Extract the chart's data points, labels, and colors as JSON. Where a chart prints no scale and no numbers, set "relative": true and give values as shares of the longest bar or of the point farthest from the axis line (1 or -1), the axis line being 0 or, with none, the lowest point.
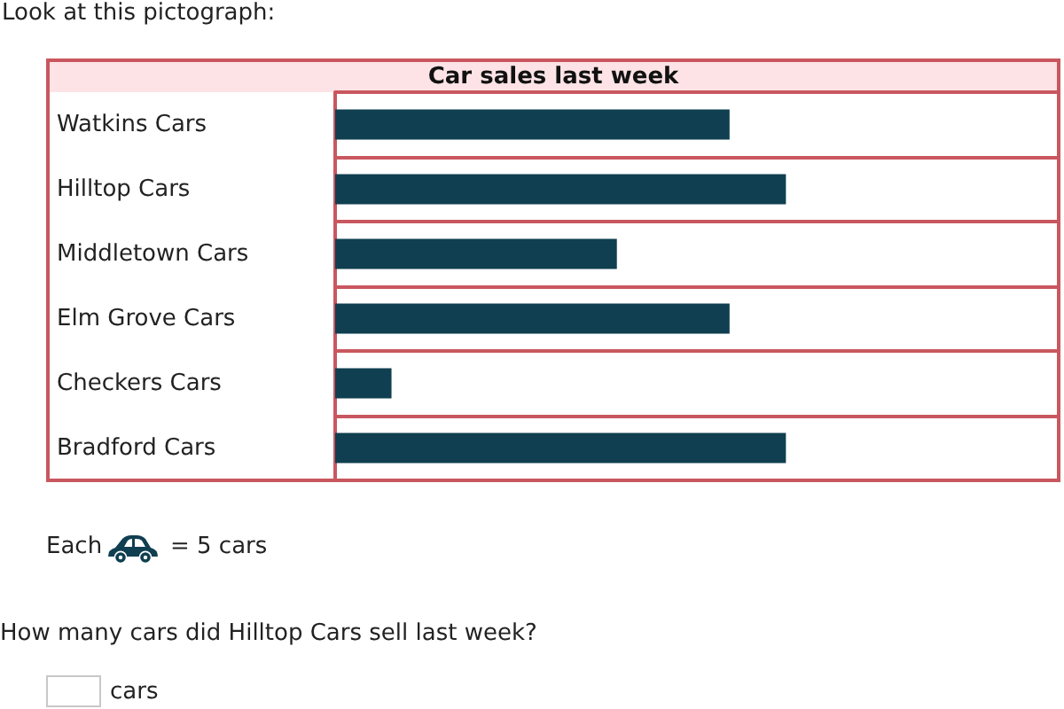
{
  "chart_data": {
    "type": "bar",
    "orientation": "horizontal",
    "relative": true,
    "title": "Car sales last week",
    "categories": [
      "Watkins Cars",
      "Hilltop Cars",
      "Middletown Cars",
      "Elm Grove Cars",
      "Checkers Cars",
      "Bradford Cars"
    ],
    "values": [
      0.875,
      1,
      0.625,
      0.875,
      0.125,
      1
    ],
    "color": "#0f3f50",
    "grid": "y",
    "annotations": [
      "Look at this pictograph:",
      "Each",
      "= 5 cars",
      "How many cars did Hilltop Cars sell last week?",
      "cars"
    ]
  }
}
